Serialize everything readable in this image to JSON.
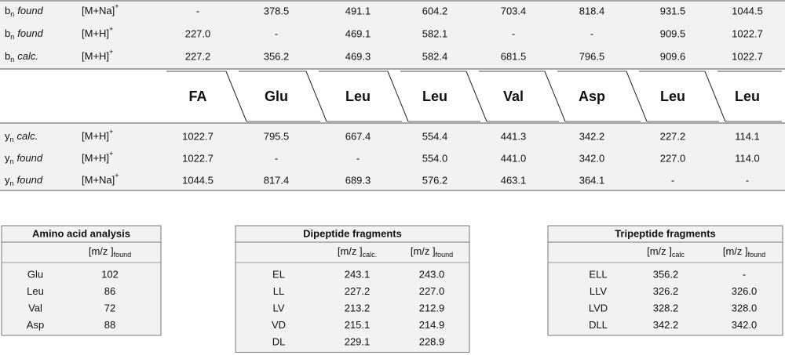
{
  "top_table": {
    "rows": [
      {
        "label": {
          "base": "b",
          "sub": "n",
          "desc": "found"
        },
        "ion": {
          "text": "[M+Na]",
          "sup": "+"
        },
        "values": [
          "-",
          "378.5",
          "491.1",
          "604.2",
          "703.4",
          "818.4",
          "931.5",
          "1044.5"
        ]
      },
      {
        "label": {
          "base": "b",
          "sub": "n",
          "desc": "found"
        },
        "ion": {
          "text": "[M+H]",
          "sup": "+"
        },
        "values": [
          "227.0",
          "-",
          "469.1",
          "582.1",
          "-",
          "-",
          "909.5",
          "1022.7"
        ]
      },
      {
        "label": {
          "base": "b",
          "sub": "n",
          "desc": "calc."
        },
        "ion": {
          "text": "[M+H]",
          "sup": "+"
        },
        "values": [
          "227.2",
          "356.2",
          "469.3",
          "582.4",
          "681.5",
          "796.5",
          "909.6",
          "1022.7"
        ]
      }
    ]
  },
  "residues": [
    "FA",
    "Glu",
    "Leu",
    "Leu",
    "Val",
    "Asp",
    "Leu",
    "Leu"
  ],
  "bottom_table": {
    "rows": [
      {
        "label": {
          "base": "y",
          "sub": "n",
          "desc": "calc."
        },
        "ion": {
          "text": "[M+H]",
          "sup": "+"
        },
        "values": [
          "1022.7",
          "795.5",
          "667.4",
          "554.4",
          "441.3",
          "342.2",
          "227.2",
          "114.1"
        ]
      },
      {
        "label": {
          "base": "y",
          "sub": "n",
          "desc": "found"
        },
        "ion": {
          "text": "[M+H]",
          "sup": "+"
        },
        "values": [
          "1022.7",
          "-",
          "-",
          "554.0",
          "441.0",
          "342.0",
          "227.0",
          "114.0"
        ]
      },
      {
        "label": {
          "base": "y",
          "sub": "n",
          "desc": "found"
        },
        "ion": {
          "text": "[M+Na]",
          "sup": "+"
        },
        "values": [
          "1044.5",
          "817.4",
          "689.3",
          "576.2",
          "463.1",
          "364.1",
          "-",
          "-"
        ]
      }
    ]
  },
  "small_tables": [
    {
      "title": "Amino acid analysis",
      "header": [
        {
          "text": "[m/z ]",
          "sub": "found"
        }
      ],
      "rows": [
        [
          "Glu",
          "102"
        ],
        [
          "Leu",
          "86"
        ],
        [
          "Val",
          "72"
        ],
        [
          "Asp",
          "88"
        ]
      ]
    },
    {
      "title": "Dipeptide fragments",
      "header": [
        {
          "text": "[m/z ]",
          "sub": "calc."
        },
        {
          "text": "[m/z ]",
          "sub": "found"
        }
      ],
      "rows": [
        [
          "EL",
          "243.1",
          "243.0"
        ],
        [
          "LL",
          "227.2",
          "227.0"
        ],
        [
          "LV",
          "213.2",
          "212.9"
        ],
        [
          "VD",
          "215.1",
          "214.9"
        ],
        [
          "DL",
          "229.1",
          "228.9"
        ]
      ]
    },
    {
      "title": "Tripeptide fragments",
      "header": [
        {
          "text": "[m/z ]",
          "sub": "calc"
        },
        {
          "text": "[m/z ]",
          "sub": "found"
        }
      ],
      "rows": [
        [
          "ELL",
          "356.2",
          "-"
        ],
        [
          "LLV",
          "326.2",
          "326.0"
        ],
        [
          "LVD",
          "328.2",
          "328.0"
        ],
        [
          "DLL",
          "342.2",
          "342.0"
        ]
      ]
    }
  ]
}
